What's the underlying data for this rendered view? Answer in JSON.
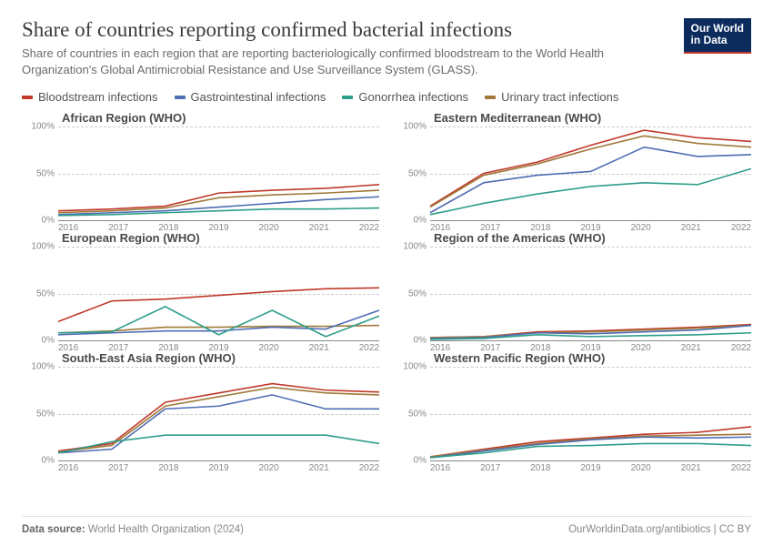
{
  "header": {
    "title": "Share of countries reporting confirmed bacterial infections",
    "subtitle": "Share of countries in each region that are reporting bacteriologically confirmed bloodstream to the World Health Organization's Global Antimicrobial Resistance and Use Surveillance System (GLASS).",
    "brand_line1": "Our World",
    "brand_line2": "in Data"
  },
  "legend": [
    {
      "label": "Bloodstream infections",
      "color": "#c0392b"
    },
    {
      "label": "Gastrointestinal infections",
      "color": "#4f6db3"
    },
    {
      "label": "Gonorrhea infections",
      "color": "#2e9e8a"
    },
    {
      "label": "Urinary tract infections",
      "color": "#a0793a"
    }
  ],
  "chart_style": {
    "type": "line",
    "line_width": 1.6,
    "grid_color": "#cccccc",
    "axis_color": "#888888",
    "background": "#ffffff",
    "ylim": [
      0,
      100
    ],
    "ytick_step": 50,
    "ytick_labels": [
      "0%",
      "50%",
      "100%"
    ],
    "x_values": [
      2016,
      2017,
      2018,
      2019,
      2020,
      2021,
      2022
    ],
    "title_fontsize": 23,
    "subtitle_fontsize": 13,
    "panel_title_fontsize": 13,
    "tick_fontsize": 10
  },
  "panels": [
    {
      "title": "African Region (WHO)",
      "series": {
        "Bloodstream infections": [
          10,
          12,
          15,
          29,
          32,
          34,
          38
        ],
        "Urinary tract infections": [
          8,
          10,
          13,
          24,
          27,
          29,
          32
        ],
        "Gastrointestinal infections": [
          6,
          8,
          10,
          14,
          18,
          22,
          25
        ],
        "Gonorrhea infections": [
          5,
          6,
          8,
          10,
          12,
          12,
          13
        ]
      }
    },
    {
      "title": "Eastern Mediterranean (WHO)",
      "series": {
        "Bloodstream infections": [
          15,
          50,
          62,
          80,
          96,
          88,
          84
        ],
        "Urinary tract infections": [
          14,
          48,
          60,
          76,
          90,
          82,
          78
        ],
        "Gastrointestinal infections": [
          8,
          40,
          48,
          52,
          78,
          68,
          70
        ],
        "Gonorrhea infections": [
          6,
          18,
          28,
          36,
          40,
          38,
          55
        ]
      }
    },
    {
      "title": "European Region (WHO)",
      "series": {
        "Bloodstream infections": [
          20,
          42,
          44,
          48,
          52,
          55,
          56
        ],
        "Urinary tract infections": [
          8,
          10,
          14,
          14,
          15,
          15,
          16
        ],
        "Gastrointestinal infections": [
          6,
          8,
          10,
          10,
          14,
          12,
          32
        ],
        "Gonorrhea infections": [
          8,
          9,
          36,
          6,
          32,
          4,
          26
        ]
      }
    },
    {
      "title": "Region of the Americas (WHO)",
      "series": {
        "Bloodstream infections": [
          3,
          4,
          9,
          10,
          12,
          14,
          17
        ],
        "Urinary tract infections": [
          3,
          4,
          8,
          9,
          11,
          13,
          16
        ],
        "Gastrointestinal infections": [
          2,
          3,
          8,
          7,
          9,
          11,
          16
        ],
        "Gonorrhea infections": [
          1,
          2,
          6,
          4,
          5,
          6,
          8
        ]
      }
    },
    {
      "title": "South-East Asia Region (WHO)",
      "series": {
        "Bloodstream infections": [
          10,
          18,
          62,
          72,
          82,
          75,
          73
        ],
        "Urinary tract infections": [
          9,
          16,
          58,
          68,
          78,
          72,
          70
        ],
        "Gastrointestinal infections": [
          8,
          12,
          55,
          58,
          70,
          55,
          55
        ],
        "Gonorrhea infections": [
          8,
          20,
          27,
          27,
          27,
          27,
          18
        ]
      }
    },
    {
      "title": "Western Pacific Region (WHO)",
      "series": {
        "Bloodstream infections": [
          4,
          12,
          20,
          24,
          28,
          30,
          36
        ],
        "Urinary tract infections": [
          4,
          11,
          18,
          23,
          26,
          27,
          28
        ],
        "Gastrointestinal infections": [
          3,
          10,
          17,
          22,
          25,
          24,
          25
        ],
        "Gonorrhea infections": [
          3,
          8,
          15,
          16,
          18,
          18,
          16
        ]
      }
    }
  ],
  "footer": {
    "source_label": "Data source:",
    "source_text": "World Health Organization (2024)",
    "right_text": "OurWorldinData.org/antibiotics | CC BY"
  }
}
